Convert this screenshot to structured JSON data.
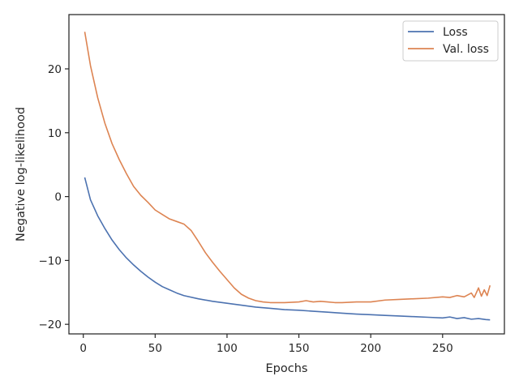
{
  "chart_data": {
    "type": "line",
    "title": "",
    "xlabel": "Epochs",
    "ylabel": "Negative log-likelihood",
    "xlim": [
      -10,
      293
    ],
    "ylim": [
      -21.5,
      28.5
    ],
    "xticks": [
      0,
      50,
      100,
      150,
      200,
      250
    ],
    "yticks": [
      -20,
      -10,
      0,
      10,
      20
    ],
    "grid": false,
    "legend_position": "top-right",
    "series": [
      {
        "name": "Loss",
        "color": "#4c72b0",
        "x": [
          1,
          5,
          10,
          15,
          20,
          25,
          30,
          35,
          40,
          45,
          50,
          55,
          60,
          65,
          70,
          80,
          90,
          100,
          110,
          120,
          130,
          140,
          150,
          160,
          170,
          180,
          190,
          200,
          210,
          220,
          230,
          240,
          250,
          255,
          260,
          265,
          270,
          275,
          280,
          283
        ],
        "y": [
          3.0,
          -0.5,
          -3.0,
          -5.0,
          -6.8,
          -8.3,
          -9.6,
          -10.7,
          -11.7,
          -12.6,
          -13.4,
          -14.1,
          -14.6,
          -15.1,
          -15.5,
          -16.0,
          -16.4,
          -16.7,
          -17.0,
          -17.3,
          -17.5,
          -17.7,
          -17.8,
          -17.95,
          -18.1,
          -18.25,
          -18.4,
          -18.5,
          -18.6,
          -18.7,
          -18.8,
          -18.9,
          -19.0,
          -18.85,
          -19.1,
          -18.95,
          -19.2,
          -19.1,
          -19.25,
          -19.3
        ]
      },
      {
        "name": "Val. loss",
        "color": "#dd8452",
        "x": [
          1,
          5,
          10,
          15,
          20,
          25,
          30,
          35,
          40,
          45,
          50,
          55,
          60,
          65,
          70,
          75,
          80,
          85,
          90,
          95,
          100,
          105,
          110,
          115,
          120,
          125,
          130,
          140,
          150,
          155,
          160,
          165,
          170,
          175,
          180,
          190,
          200,
          210,
          220,
          230,
          240,
          250,
          255,
          260,
          265,
          270,
          272,
          275,
          277,
          279,
          281,
          283
        ],
        "y": [
          25.8,
          20.5,
          15.5,
          11.5,
          8.3,
          5.8,
          3.6,
          1.6,
          0.2,
          -0.9,
          -2.1,
          -2.8,
          -3.5,
          -3.9,
          -4.3,
          -5.3,
          -7.0,
          -8.8,
          -10.3,
          -11.7,
          -13.0,
          -14.3,
          -15.3,
          -15.9,
          -16.3,
          -16.5,
          -16.6,
          -16.6,
          -16.5,
          -16.3,
          -16.5,
          -16.4,
          -16.5,
          -16.6,
          -16.6,
          -16.5,
          -16.5,
          -16.2,
          -16.1,
          -16.0,
          -15.9,
          -15.7,
          -15.8,
          -15.5,
          -15.7,
          -15.1,
          -15.8,
          -14.3,
          -15.6,
          -14.6,
          -15.5,
          -13.9
        ]
      }
    ]
  }
}
